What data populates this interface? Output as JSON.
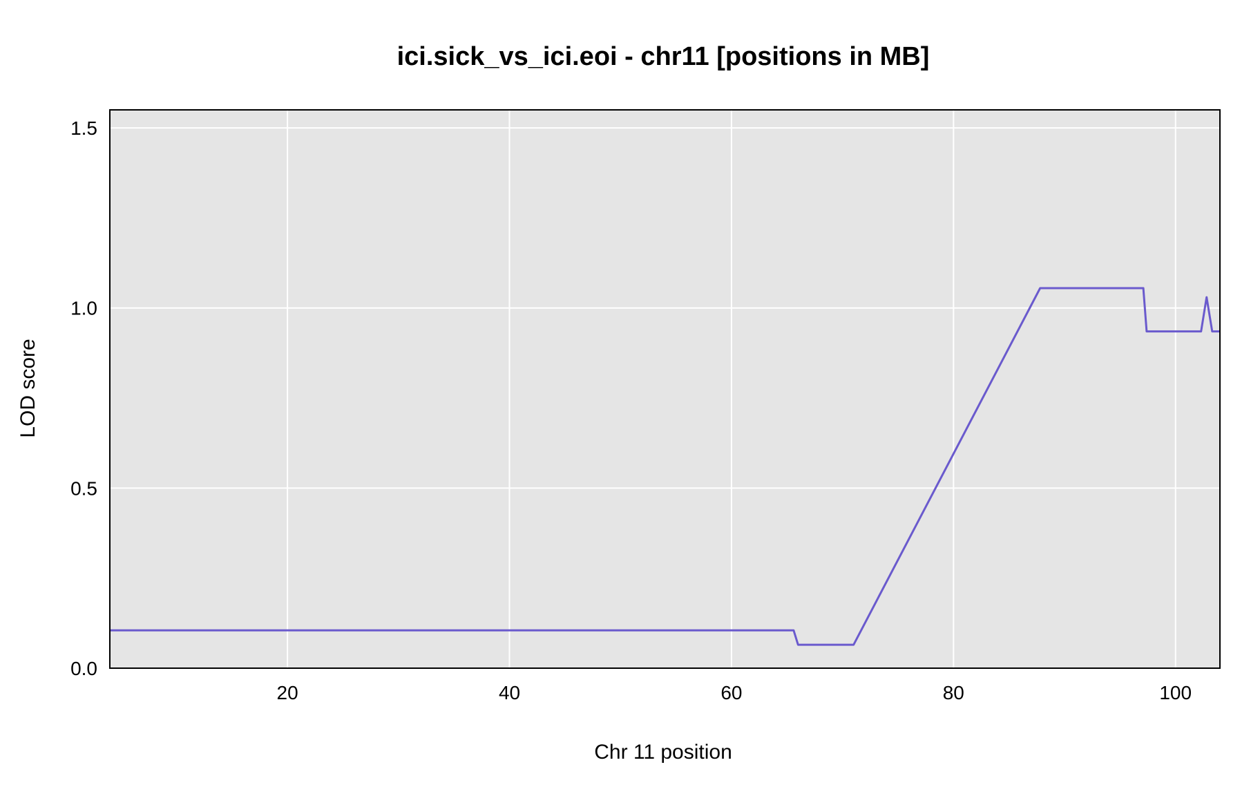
{
  "chart_data": {
    "type": "line",
    "title": "ici.sick_vs_ici.eoi - chr11 [positions in MB]",
    "xlabel": "Chr 11 position",
    "ylabel": "LOD score",
    "xlim": [
      4,
      104
    ],
    "ylim": [
      0,
      1.55
    ],
    "x_ticks": [
      20,
      40,
      60,
      80,
      100
    ],
    "y_ticks": [
      0.0,
      0.5,
      1.0,
      1.5
    ],
    "y_tick_labels": [
      "0.0",
      "0.5",
      "1.0",
      "1.5"
    ],
    "grid": true,
    "legend": "none",
    "colors": {
      "line": "#6a5acd",
      "panel": "#e5e5e5",
      "grid": "#ffffff",
      "baseline": "#00008b"
    },
    "series": [
      {
        "x": [
          4,
          65.6,
          66.0,
          71.0,
          87.8,
          97.1,
          97.4,
          102.3,
          102.8,
          103.3,
          104
        ],
        "values": [
          0.105,
          0.105,
          0.065,
          0.065,
          1.055,
          1.055,
          0.935,
          0.935,
          1.03,
          0.935,
          0.935
        ]
      }
    ]
  }
}
